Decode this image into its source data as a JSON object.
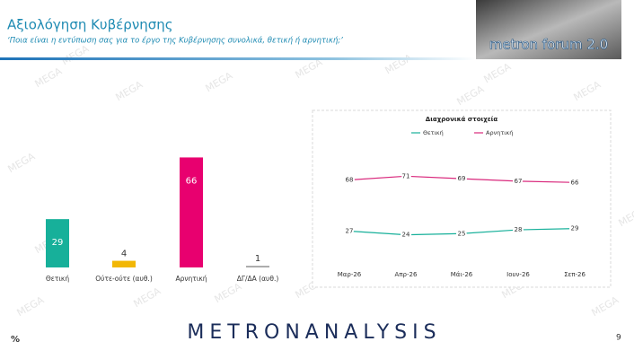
{
  "header": {
    "title": "Αξιολόγηση Κυβέρνησης",
    "subtitle": "‘Ποια είναι η εντύπωση σας για το έργο της Κυβέρνησης συνολικά, θετική ή αρνητική;’",
    "logo": "metron forum 2.0"
  },
  "watermark": "MEGA",
  "footer": {
    "brand": "METRONANALYSIS",
    "unit": "%",
    "page": "9"
  },
  "chart_data": [
    {
      "type": "bar",
      "categories": [
        "Θετική",
        "Ούτε-ούτε (αυθ.)",
        "Αρνητική",
        "ΔΓ/ΔΑ (αυθ.)"
      ],
      "values": [
        29,
        4,
        66,
        1
      ],
      "colors": [
        "#17b09a",
        "#f2b705",
        "#e8006f",
        "#a6a6a6"
      ],
      "ylim": [
        0,
        70
      ]
    },
    {
      "type": "line",
      "title": "Διαχρονικά στοιχεία",
      "categories": [
        "Μαρ-26",
        "Απρ-26",
        "Μάι-26",
        "Ιουν-26",
        "Σεπ-26"
      ],
      "series": [
        {
          "name": "Θετική",
          "color": "#17b09a",
          "values": [
            27,
            24,
            25,
            28,
            29
          ]
        },
        {
          "name": "Αρνητική",
          "color": "#d9287c",
          "values": [
            68,
            71,
            69,
            67,
            66
          ]
        }
      ],
      "ylim": [
        0,
        100
      ]
    }
  ]
}
